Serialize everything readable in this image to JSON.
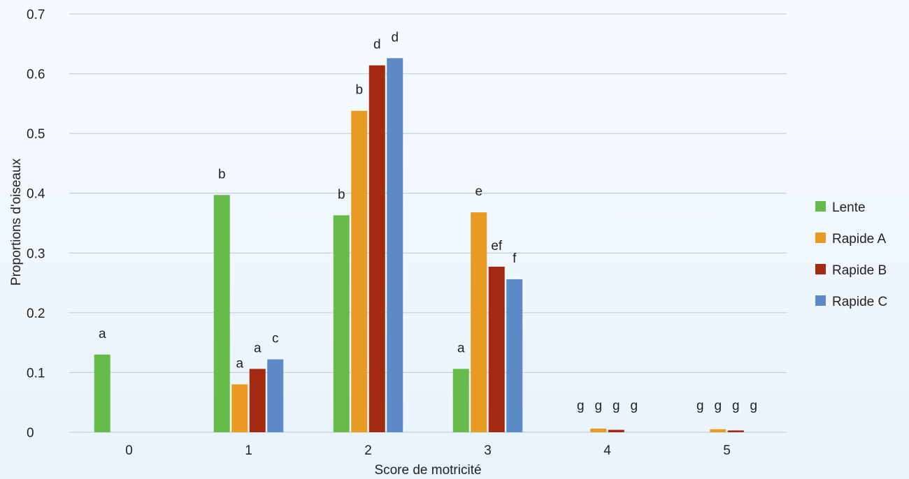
{
  "chart_data": {
    "type": "bar",
    "title": "",
    "xlabel": "Score de motricité",
    "ylabel": "Proportions d'oiseaux",
    "ylim": [
      0,
      0.7
    ],
    "yticks": [
      "0",
      "0.1",
      "0.2",
      "0.3",
      "0.4",
      "0.5",
      "0.6",
      "0.7"
    ],
    "categories": [
      "0",
      "1",
      "2",
      "3",
      "4",
      "5"
    ],
    "grid": true,
    "legend_position": "right",
    "series": [
      {
        "name": "Lente",
        "color": "#66bb4a",
        "values": [
          0.13,
          0.397,
          0.363,
          0.106,
          0,
          0
        ],
        "labels": [
          "a",
          "b",
          "b",
          "a",
          "g",
          "g"
        ]
      },
      {
        "name": "Rapide A",
        "color": "#e89a22",
        "values": [
          0,
          0.08,
          0.538,
          0.368,
          0.006,
          0.005
        ],
        "labels": [
          "",
          "a",
          "b",
          "e",
          "g",
          "g"
        ]
      },
      {
        "name": "Rapide B",
        "color": "#a12a10",
        "values": [
          0,
          0.106,
          0.614,
          0.277,
          0.004,
          0.003
        ],
        "labels": [
          "",
          "a",
          "d",
          "ef",
          "g",
          "g"
        ]
      },
      {
        "name": "Rapide C",
        "color": "#5b8ac6",
        "values": [
          0,
          0.122,
          0.626,
          0.256,
          0,
          0
        ],
        "labels": [
          "",
          "c",
          "d",
          "f",
          "g",
          "g"
        ]
      }
    ]
  }
}
